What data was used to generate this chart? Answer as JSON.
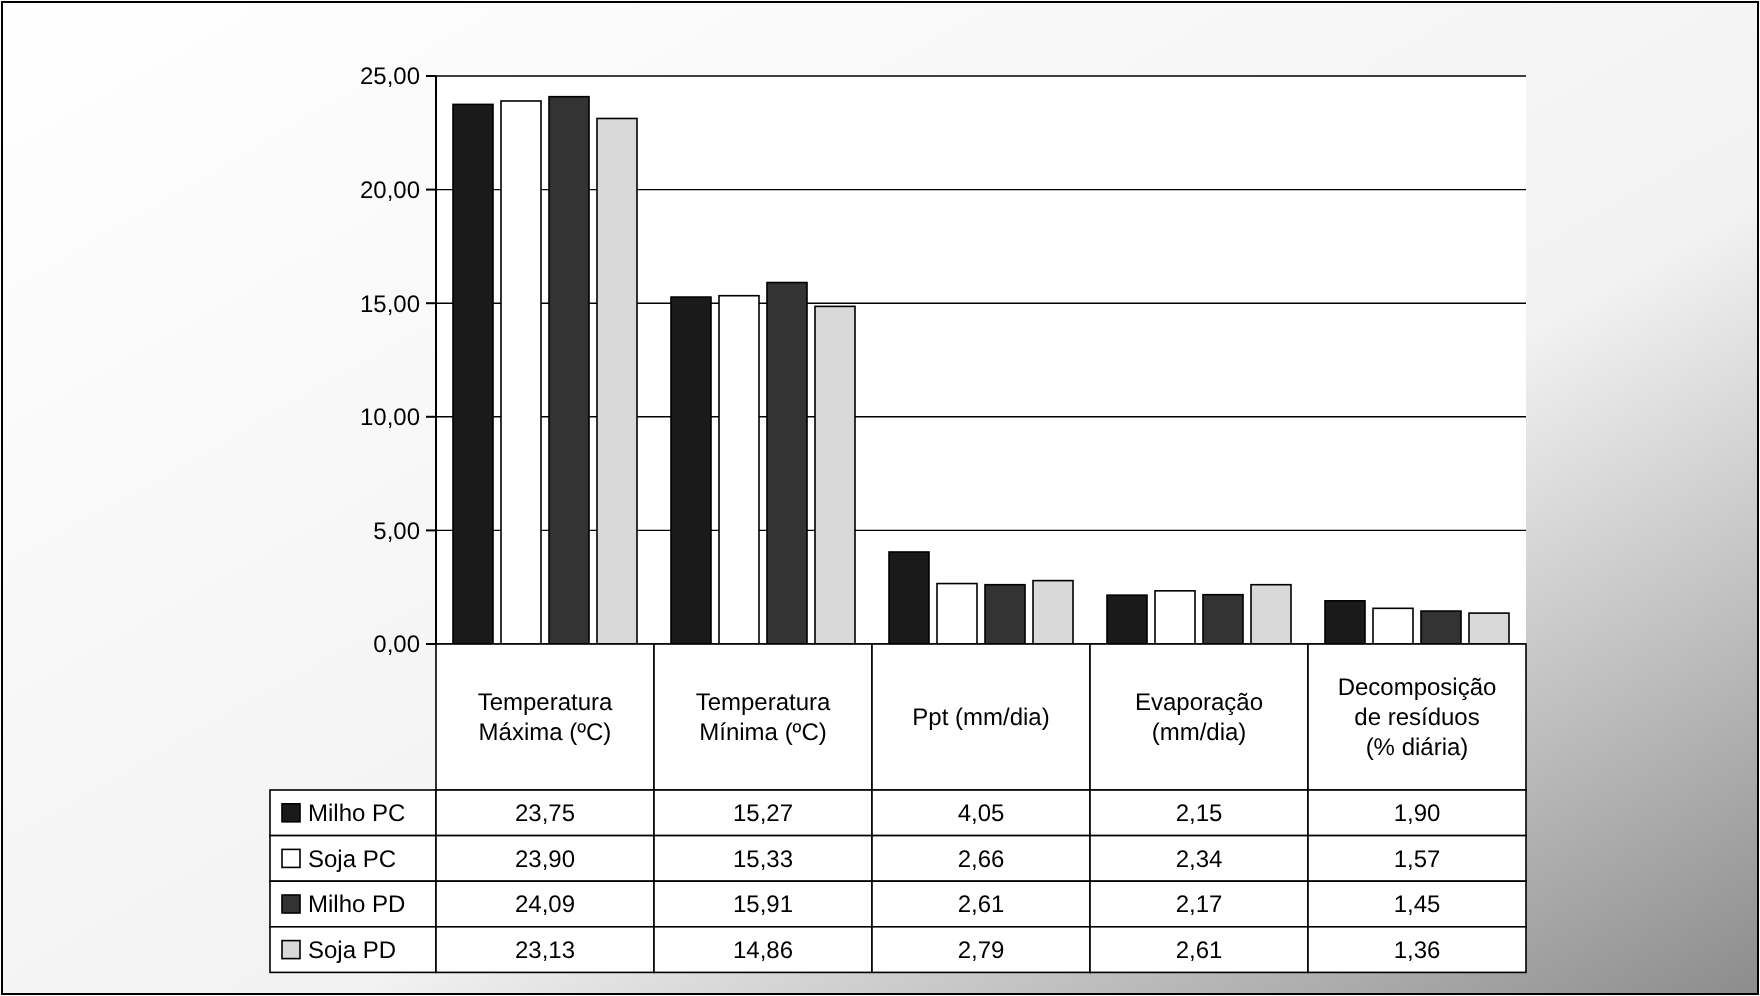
{
  "chart_data": {
    "type": "bar",
    "categories": [
      "Temperatura Máxima (ºC)",
      "Temperatura Mínima (ºC)",
      "Ppt (mm/dia)",
      "Evaporação (mm/dia)",
      "Decomposição de resíduos (% diária)"
    ],
    "series": [
      {
        "name": "Milho PC",
        "color": "#1a1a1a",
        "values": [
          23.75,
          15.27,
          4.05,
          2.15,
          1.9
        ],
        "value_labels": [
          "23,75",
          "15,27",
          "4,05",
          "2,15",
          "1,90"
        ]
      },
      {
        "name": "Soja PC",
        "color": "#ffffff",
        "values": [
          23.9,
          15.33,
          2.66,
          2.34,
          1.57
        ],
        "value_labels": [
          "23,90",
          "15,33",
          "2,66",
          "2,34",
          "1,57"
        ]
      },
      {
        "name": "Milho PD",
        "color": "#333333",
        "values": [
          24.09,
          15.91,
          2.61,
          2.17,
          1.45
        ],
        "value_labels": [
          "24,09",
          "15,91",
          "2,61",
          "2,17",
          "1,45"
        ]
      },
      {
        "name": "Soja PD",
        "color": "#d9d9d9",
        "values": [
          23.13,
          14.86,
          2.79,
          2.61,
          1.36
        ],
        "value_labels": [
          "23,13",
          "14,86",
          "2,79",
          "2,61",
          "1,36"
        ]
      }
    ],
    "ylim": [
      0,
      25
    ],
    "yticks": [
      {
        "value": 0,
        "label": "0,00"
      },
      {
        "value": 5,
        "label": "5,00"
      },
      {
        "value": 10,
        "label": "10,00"
      },
      {
        "value": 15,
        "label": "15,00"
      },
      {
        "value": 20,
        "label": "20,00"
      },
      {
        "value": 25,
        "label": "25,00"
      }
    ],
    "grid": "y",
    "legend": "bottom"
  }
}
